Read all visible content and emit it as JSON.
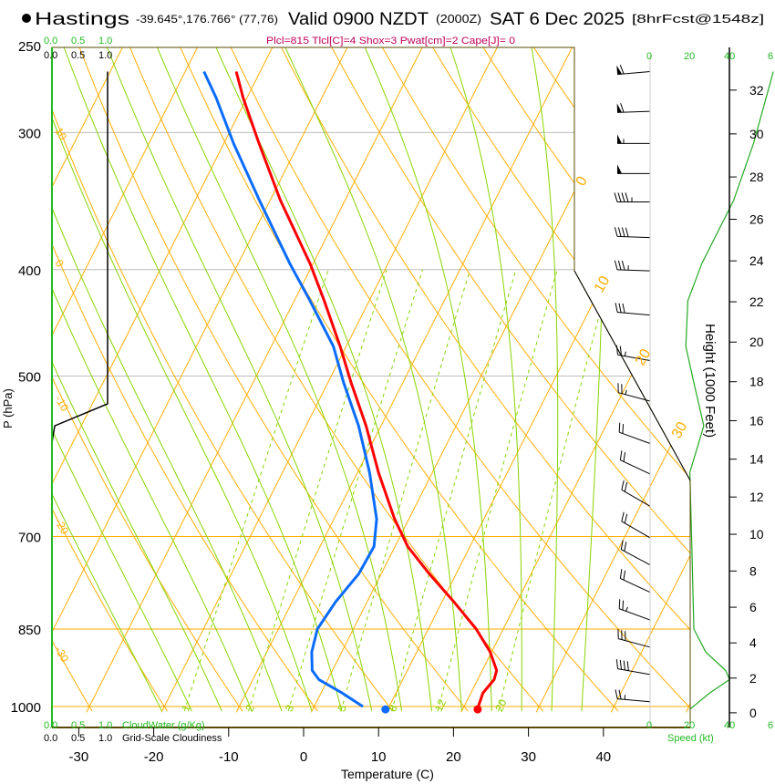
{
  "header": {
    "station": "Hastings",
    "coords": "-39.645°,176.766° (77,76)",
    "valid": "Valid 0900 NZDT",
    "utc": "(2000Z)",
    "date": "SAT 6 Dec 2025",
    "forecast": "[8hrFcst@1548z]",
    "indices": "Plcl=815 Tlcl[C]=4 Shox=3 Pwat[cm]=2 Cape[J]= 0"
  },
  "cloud_scale": {
    "ticks": [
      "0.0",
      "0.5",
      "1.0"
    ],
    "cloudwater_label": "CloudWater (g/Kg)",
    "cloudiness_label": "Grid-Scale Cloudiness"
  },
  "speed_scale": {
    "ticks": [
      "0",
      "20",
      "40",
      "6"
    ],
    "label": "Speed (kt)"
  },
  "colors": {
    "temp": "#ff0000",
    "dew": "#0a6cff",
    "iso": "#ffae00",
    "green": "#66cc11",
    "label_green": "#22bb22",
    "indices": "#c0005a"
  },
  "chart_data": {
    "type": "line",
    "title": "Skew-T Sounding",
    "xlabel": "Temperature (C)",
    "ylabel": "P (hPa)",
    "y2label": "Height (1000 Feet)",
    "x_ticks": [
      "-30",
      "-20",
      "-10",
      "0",
      "10",
      "20",
      "30",
      "40"
    ],
    "x_tick_values": [
      -30,
      -20,
      -10,
      0,
      10,
      20,
      30,
      40
    ],
    "p_ticks": [
      "250",
      "300",
      "400",
      "500",
      "700",
      "850",
      "1000"
    ],
    "p_tick_values": [
      250,
      300,
      400,
      500,
      700,
      850,
      1000
    ],
    "height_ticks": [
      "0",
      "2",
      "4",
      "6",
      "8",
      "10",
      "12",
      "14",
      "16",
      "18",
      "20",
      "22",
      "24",
      "26",
      "28",
      "30",
      "32"
    ],
    "isotherm_labels": [
      "0",
      "10",
      "20",
      "30"
    ],
    "dry_adiabat_labels": [
      "10",
      "0",
      "-10",
      "-20",
      "-30"
    ],
    "mixing_ratio_labels": [
      "1",
      "2",
      "3",
      "5",
      "8",
      "12",
      "20"
    ],
    "mixing_ratio_values": [
      1,
      2,
      3,
      5,
      8,
      12,
      20
    ],
    "pressure": [
      1000,
      972,
      945,
      927,
      892,
      850,
      803,
      757,
      715,
      675,
      612,
      555,
      507,
      470,
      427,
      395,
      346,
      307,
      279,
      264
    ],
    "series": [
      {
        "name": "Temperature",
        "values": [
          21.9,
          21.6,
          22.2,
          21.9,
          19.8,
          16.4,
          11.6,
          6.4,
          1.7,
          -1.9,
          -7.2,
          -12.0,
          -16.9,
          -20.8,
          -26.0,
          -30.4,
          -38.6,
          -45.3,
          -50.5,
          -53.2
        ]
      },
      {
        "name": "Dewpoint",
        "values": [
          6.5,
          2.8,
          -1.2,
          -2.7,
          -4.0,
          -4.8,
          -4.2,
          -3.0,
          -2.8,
          -4.3,
          -8.4,
          -13.0,
          -17.9,
          -21.7,
          -27.9,
          -33.1,
          -41.4,
          -48.7,
          -54.1,
          -57.5
        ]
      }
    ],
    "surface": {
      "pressure": 1006,
      "temperature": 22,
      "dewpoint": 9.7
    },
    "wind_speed": {
      "pressure": [
        1006,
        972,
        945,
        927,
        892,
        850,
        715,
        612,
        555,
        507,
        470,
        427,
        395,
        346,
        307,
        264
      ],
      "speed_kt": [
        20,
        30,
        40,
        38,
        28,
        22,
        21,
        20,
        27,
        22,
        18,
        19,
        26,
        42,
        52,
        62
      ]
    },
    "wind_barbs": {
      "pressure": [
        264,
        287,
        307,
        327,
        347,
        374,
        401,
        440,
        484,
        527,
        576,
        614,
        657,
        702,
        743,
        787,
        834,
        883,
        935,
        990
      ],
      "speed_kt": [
        62,
        58,
        55,
        50,
        45,
        40,
        35,
        30,
        25,
        25,
        22,
        20,
        20,
        20,
        21,
        22,
        24,
        30,
        38,
        25
      ],
      "direction_deg": [
        265,
        268,
        270,
        270,
        270,
        272,
        272,
        275,
        280,
        285,
        290,
        295,
        300,
        300,
        298,
        295,
        290,
        285,
        280,
        275
      ]
    },
    "cloudiness": {
      "pressure": [
        264,
        530,
        555,
        575
      ],
      "fraction": [
        1.0,
        1.0,
        0.05,
        0.0
      ]
    }
  }
}
